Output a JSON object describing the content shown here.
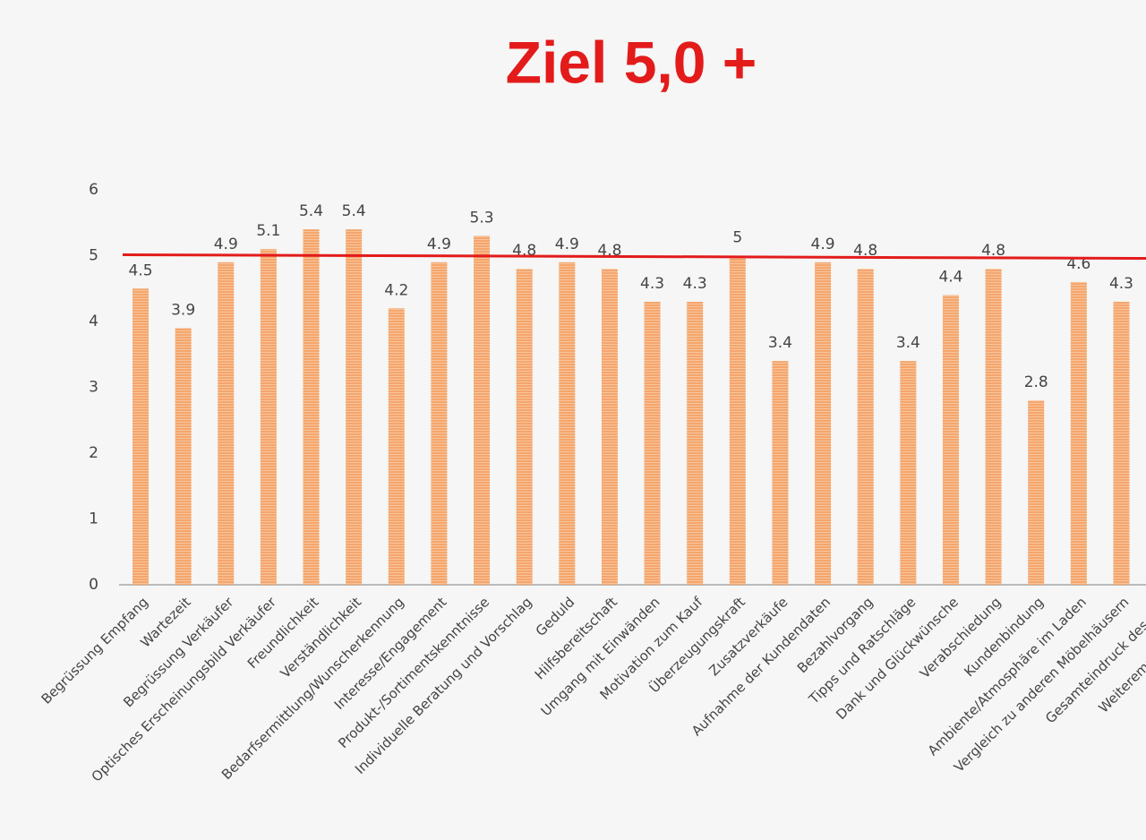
{
  "chart_data": {
    "type": "bar",
    "title": "Ziel 5,0 +",
    "categories": [
      "Begrüssung Empfang",
      "Wartezeit",
      "Begrüssung Verkäufer",
      "Optisches Erscheinungsbild Verkäufer",
      "Freundlichkeit",
      "Verständlichkeit",
      "Bedarfsermittlung/Wunscherkennung",
      "Interesse/Engagement",
      "Produkt-/Sortimentskenntnisse",
      "Individuelle Beratung und Vorschlag",
      "Geduld",
      "Hilfsbereitschaft",
      "Umgang mit Einwänden",
      "Motivation zum Kauf",
      "Überzeugungskraft",
      "Zusatzverkäufe",
      "Aufnahme der Kundendaten",
      "Bezahlvorgang",
      "Tipps und Ratschläge",
      "Dank und Glückwünsche",
      "Verabschiedung",
      "Kundenbindung",
      "Ambiente/Atmosphäre im Laden",
      "Vergleich zu anderen Möbelhäusern",
      "Gesamteindruck des Eink",
      "Weiterempfehlung Möb"
    ],
    "values": [
      4.5,
      3.9,
      4.9,
      5.1,
      5.4,
      5.4,
      4.2,
      4.9,
      5.3,
      4.8,
      4.9,
      4.8,
      4.3,
      4.3,
      5,
      3.4,
      4.9,
      4.8,
      3.4,
      4.4,
      4.8,
      2.8,
      4.6,
      4.3,
      null,
      null
    ],
    "color": "#f4a66c",
    "ylim": [
      0,
      6
    ],
    "yticks": [
      0,
      1,
      2,
      3,
      4,
      5,
      6
    ],
    "grid": false,
    "target_line": {
      "value": 5,
      "color": "#e31b1b"
    }
  }
}
